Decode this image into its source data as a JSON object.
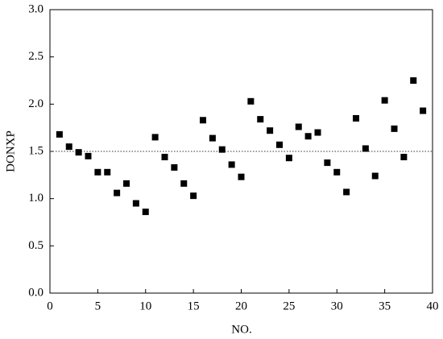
{
  "chart_data": {
    "type": "scatter",
    "x_label": "NO.",
    "y_label": "DONXP",
    "x": [
      1,
      2,
      3,
      4,
      5,
      6,
      7,
      8,
      9,
      10,
      11,
      12,
      13,
      14,
      15,
      16,
      17,
      18,
      19,
      20,
      21,
      22,
      23,
      24,
      25,
      26,
      27,
      28,
      29,
      30,
      31,
      32,
      33,
      34,
      35,
      36,
      37,
      38,
      39
    ],
    "values": [
      1.68,
      1.55,
      1.49,
      1.45,
      1.28,
      1.28,
      1.06,
      1.16,
      0.95,
      0.86,
      1.65,
      1.44,
      1.33,
      1.16,
      1.03,
      1.83,
      1.64,
      1.52,
      1.36,
      1.23,
      2.03,
      1.84,
      1.72,
      1.57,
      1.43,
      1.76,
      1.66,
      1.7,
      1.38,
      1.28,
      1.07,
      1.85,
      1.53,
      1.24,
      2.04,
      1.74,
      1.44,
      2.25,
      1.93
    ],
    "color": "#000000",
    "reference_line": 1.5,
    "xlim": [
      0,
      40
    ],
    "xticks": [
      0,
      5,
      10,
      15,
      20,
      25,
      30,
      35,
      40
    ],
    "ylim": [
      0,
      3
    ],
    "yticks": [
      {
        "value": 0,
        "label": "0.0"
      },
      {
        "value": 0.5,
        "label": "0.5"
      },
      {
        "value": 1,
        "label": "1.0"
      },
      {
        "value": 1.5,
        "label": "1.5"
      },
      {
        "value": 2,
        "label": "2.0"
      },
      {
        "value": 2.5,
        "label": "2.5"
      },
      {
        "value": 3,
        "label": "3.0"
      }
    ]
  }
}
